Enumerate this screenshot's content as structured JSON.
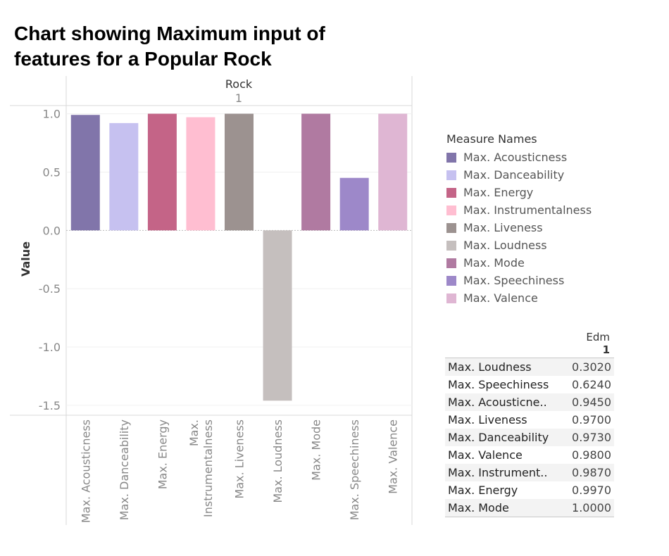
{
  "title_lines": [
    "Chart showing Maximum input of",
    "features for a Popular Rock"
  ],
  "chart_data": {
    "type": "bar",
    "column_header": "Rock",
    "column_subheader": "1",
    "ylabel": "Value",
    "ylim": [
      -1.6,
      1.1
    ],
    "yticks": [
      1.0,
      0.5,
      0.0,
      -0.5,
      -1.0,
      -1.5
    ],
    "ytick_labels": [
      "1.0",
      "0.5",
      "0.0",
      "-0.5",
      "-1.0",
      "-1.5"
    ],
    "categories": [
      [
        "Max. Acousticness"
      ],
      [
        "Max. Danceability"
      ],
      [
        "Max. Energy"
      ],
      [
        "Max.",
        "Instrumentalness"
      ],
      [
        "Max. Liveness"
      ],
      [
        "Max. Loudness"
      ],
      [
        "Max. Mode"
      ],
      [
        "Max. Speechiness"
      ],
      [
        "Max. Valence"
      ]
    ],
    "values": [
      0.99,
      0.92,
      1.0,
      0.97,
      1.0,
      -1.46,
      1.0,
      0.45,
      1.0
    ],
    "colors": [
      "#8175aa",
      "#c6c1f0",
      "#c46487",
      "#ffbed1",
      "#9c9290",
      "#c5bfbe",
      "#b07aa1",
      "#9d88c9",
      "#dfb6d3"
    ]
  },
  "legend": {
    "title": "Measure Names",
    "items": [
      {
        "label": "Max. Acousticness",
        "color": "#8175aa"
      },
      {
        "label": "Max. Danceability",
        "color": "#c6c1f0"
      },
      {
        "label": "Max. Energy",
        "color": "#c46487"
      },
      {
        "label": "Max. Instrumentalness",
        "color": "#ffbed1"
      },
      {
        "label": "Max. Liveness",
        "color": "#9c9290"
      },
      {
        "label": "Max. Loudness",
        "color": "#c5bfbe"
      },
      {
        "label": "Max. Mode",
        "color": "#b07aa1"
      },
      {
        "label": "Max. Speechiness",
        "color": "#9d88c9"
      },
      {
        "label": "Max. Valence",
        "color": "#dfb6d3"
      }
    ]
  },
  "table": {
    "header": "Edm",
    "subheader": "1",
    "rows": [
      {
        "name": "Max. Loudness",
        "value": "0.3020"
      },
      {
        "name": "Max. Speechiness",
        "value": "0.6240"
      },
      {
        "name": "Max. Acousticne..",
        "value": "0.9450"
      },
      {
        "name": "Max. Liveness",
        "value": "0.9700"
      },
      {
        "name": "Max. Danceability",
        "value": "0.9730"
      },
      {
        "name": "Max. Valence",
        "value": "0.9800"
      },
      {
        "name": "Max. Instrument..",
        "value": "0.9870"
      },
      {
        "name": "Max. Energy",
        "value": "0.9970"
      },
      {
        "name": "Max. Mode",
        "value": "1.0000"
      }
    ]
  }
}
